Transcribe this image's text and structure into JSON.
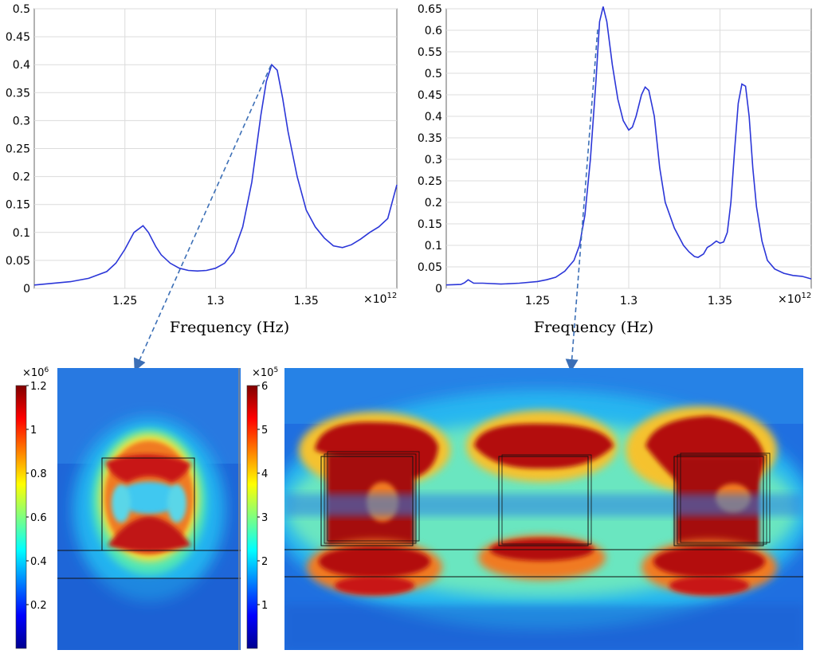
{
  "chart_data": [
    {
      "type": "line",
      "name": "spectrum-left",
      "xlabel": "Frequency (Hz)",
      "x_exponent_label": "×10",
      "x_exponent_power": "12",
      "xlim": [
        1.2,
        1.4
      ],
      "ylim": [
        0,
        0.5
      ],
      "xticks": [
        {
          "v": 1.25,
          "label": "1.25"
        },
        {
          "v": 1.3,
          "label": "1.3"
        },
        {
          "v": 1.35,
          "label": "1.35"
        }
      ],
      "yticks": [
        {
          "v": 0,
          "label": "0"
        },
        {
          "v": 0.05,
          "label": "0.05"
        },
        {
          "v": 0.1,
          "label": "0.1"
        },
        {
          "v": 0.15,
          "label": "0.15"
        },
        {
          "v": 0.2,
          "label": "0.2"
        },
        {
          "v": 0.25,
          "label": "0.25"
        },
        {
          "v": 0.3,
          "label": "0.3"
        },
        {
          "v": 0.35,
          "label": "0.35"
        },
        {
          "v": 0.4,
          "label": "0.4"
        },
        {
          "v": 0.45,
          "label": "0.45"
        },
        {
          "v": 0.5,
          "label": "0.5"
        }
      ],
      "color": "#2b36d8",
      "series": [
        {
          "name": "response",
          "x": [
            1.2,
            1.22,
            1.23,
            1.24,
            1.245,
            1.25,
            1.255,
            1.26,
            1.263,
            1.267,
            1.27,
            1.275,
            1.28,
            1.285,
            1.29,
            1.295,
            1.3,
            1.305,
            1.31,
            1.315,
            1.32,
            1.325,
            1.328,
            1.331,
            1.334,
            1.337,
            1.34,
            1.345,
            1.35,
            1.355,
            1.36,
            1.365,
            1.37,
            1.375,
            1.38,
            1.385,
            1.39,
            1.395,
            1.4
          ],
          "y": [
            0.006,
            0.012,
            0.018,
            0.03,
            0.045,
            0.07,
            0.1,
            0.112,
            0.1,
            0.075,
            0.06,
            0.045,
            0.036,
            0.032,
            0.031,
            0.032,
            0.036,
            0.045,
            0.065,
            0.11,
            0.19,
            0.31,
            0.37,
            0.4,
            0.39,
            0.34,
            0.28,
            0.2,
            0.14,
            0.11,
            0.09,
            0.076,
            0.073,
            0.078,
            0.088,
            0.1,
            0.11,
            0.125,
            0.185
          ]
        }
      ]
    },
    {
      "type": "line",
      "name": "spectrum-right",
      "xlabel": "Frequency (Hz)",
      "x_exponent_label": "×10",
      "x_exponent_power": "12",
      "xlim": [
        1.2,
        1.4
      ],
      "ylim": [
        0,
        0.65
      ],
      "xticks": [
        {
          "v": 1.25,
          "label": "1.25"
        },
        {
          "v": 1.3,
          "label": "1.3"
        },
        {
          "v": 1.35,
          "label": "1.35"
        }
      ],
      "yticks": [
        {
          "v": 0,
          "label": "0"
        },
        {
          "v": 0.05,
          "label": "0.05"
        },
        {
          "v": 0.1,
          "label": "0.1"
        },
        {
          "v": 0.15,
          "label": "0.15"
        },
        {
          "v": 0.2,
          "label": "0.2"
        },
        {
          "v": 0.25,
          "label": "0.25"
        },
        {
          "v": 0.3,
          "label": "0.3"
        },
        {
          "v": 0.35,
          "label": "0.35"
        },
        {
          "v": 0.4,
          "label": "0.4"
        },
        {
          "v": 0.45,
          "label": "0.45"
        },
        {
          "v": 0.5,
          "label": "0.5"
        },
        {
          "v": 0.55,
          "label": "0.55"
        },
        {
          "v": 0.6,
          "label": "0.6"
        },
        {
          "v": 0.65,
          "label": "0.65"
        }
      ],
      "color": "#2b36d8",
      "series": [
        {
          "name": "response",
          "x": [
            1.2,
            1.208,
            1.21,
            1.212,
            1.215,
            1.22,
            1.23,
            1.24,
            1.25,
            1.255,
            1.26,
            1.265,
            1.27,
            1.273,
            1.276,
            1.279,
            1.282,
            1.284,
            1.286,
            1.288,
            1.291,
            1.294,
            1.297,
            1.3,
            1.302,
            1.304,
            1.307,
            1.309,
            1.311,
            1.314,
            1.317,
            1.32,
            1.325,
            1.33,
            1.333,
            1.336,
            1.338,
            1.341,
            1.343,
            1.345,
            1.348,
            1.35,
            1.352,
            1.354,
            1.356,
            1.358,
            1.36,
            1.362,
            1.364,
            1.366,
            1.368,
            1.37,
            1.373,
            1.376,
            1.38,
            1.385,
            1.39,
            1.395,
            1.4
          ],
          "y": [
            0.008,
            0.009,
            0.013,
            0.02,
            0.012,
            0.012,
            0.01,
            0.012,
            0.016,
            0.02,
            0.026,
            0.04,
            0.065,
            0.1,
            0.17,
            0.3,
            0.48,
            0.62,
            0.655,
            0.62,
            0.52,
            0.44,
            0.39,
            0.368,
            0.375,
            0.4,
            0.45,
            0.468,
            0.46,
            0.4,
            0.28,
            0.2,
            0.14,
            0.1,
            0.085,
            0.074,
            0.072,
            0.08,
            0.095,
            0.1,
            0.11,
            0.105,
            0.108,
            0.13,
            0.2,
            0.32,
            0.43,
            0.475,
            0.47,
            0.4,
            0.28,
            0.19,
            0.11,
            0.065,
            0.045,
            0.035,
            0.03,
            0.028,
            0.022
          ]
        }
      ]
    }
  ],
  "colorbars": [
    {
      "name": "colorbar-left",
      "scale_label": "×10",
      "scale_power": "6",
      "range": [
        0,
        1.2
      ],
      "ticks": [
        {
          "v": 0.2,
          "label": "0.2"
        },
        {
          "v": 0.4,
          "label": "0.4"
        },
        {
          "v": 0.6,
          "label": "0.6"
        },
        {
          "v": 0.8,
          "label": "0.8"
        },
        {
          "v": 1,
          "label": "1"
        },
        {
          "v": 1.2,
          "label": "1.2"
        }
      ]
    },
    {
      "name": "colorbar-right",
      "scale_label": "×10",
      "scale_power": "5",
      "range": [
        0,
        6
      ],
      "ticks": [
        {
          "v": 1,
          "label": "1"
        },
        {
          "v": 2,
          "label": "2"
        },
        {
          "v": 3,
          "label": "3"
        },
        {
          "v": 4,
          "label": "4"
        },
        {
          "v": 5,
          "label": "5"
        },
        {
          "v": 6,
          "label": "6"
        }
      ]
    }
  ],
  "colors": {
    "curve": "#2b36d8",
    "arrow": "#3c6fb6",
    "grid": "#dcdcdc"
  }
}
